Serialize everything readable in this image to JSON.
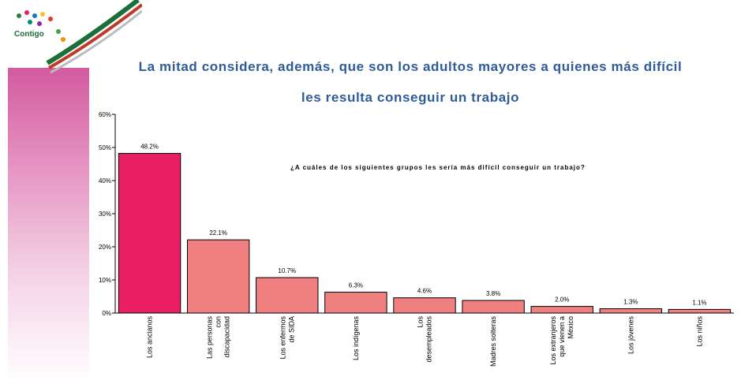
{
  "header": {
    "title_line1": "La mitad considera, además, que son los adultos mayores a quienes más difícil",
    "title_line2": "les resulta conseguir un trabajo",
    "logo_text": "Contigo"
  },
  "chart_data": {
    "type": "bar",
    "title": "La mitad considera, además, que son los adultos mayores a quienes más difícil les resulta conseguir un trabajo",
    "question": "¿A cuáles de los siguientes grupos les sería más difícil conseguir un trabajo?",
    "categories": [
      [
        "Los ancianos"
      ],
      [
        "Las personas",
        "con",
        "discapacidad"
      ],
      [
        "Los enfermos",
        "de SIDA"
      ],
      [
        "Los indígenas"
      ],
      [
        "Los",
        "desempleados"
      ],
      [
        "Madres solteras"
      ],
      [
        "Los extranjeros",
        "que vienen a",
        "México"
      ],
      [
        "Los jóvenes"
      ],
      [
        "Los niños"
      ]
    ],
    "values": [
      48.2,
      22.1,
      10.7,
      6.3,
      4.6,
      3.8,
      2.0,
      1.3,
      1.1
    ],
    "value_labels": [
      "48.2%",
      "22.1%",
      "10.7%",
      "6.3%",
      "4.6%",
      "3.8%",
      "2.0%",
      "1.3%",
      "1.1%"
    ],
    "yticks": [
      "0%",
      "10%",
      "20%",
      "30%",
      "40%",
      "50%",
      "60%"
    ],
    "ylim": [
      0,
      60
    ],
    "colors": {
      "highlight": "#e91e63",
      "bar": "#f08080",
      "title": "#2e5c99"
    },
    "grid": false
  }
}
